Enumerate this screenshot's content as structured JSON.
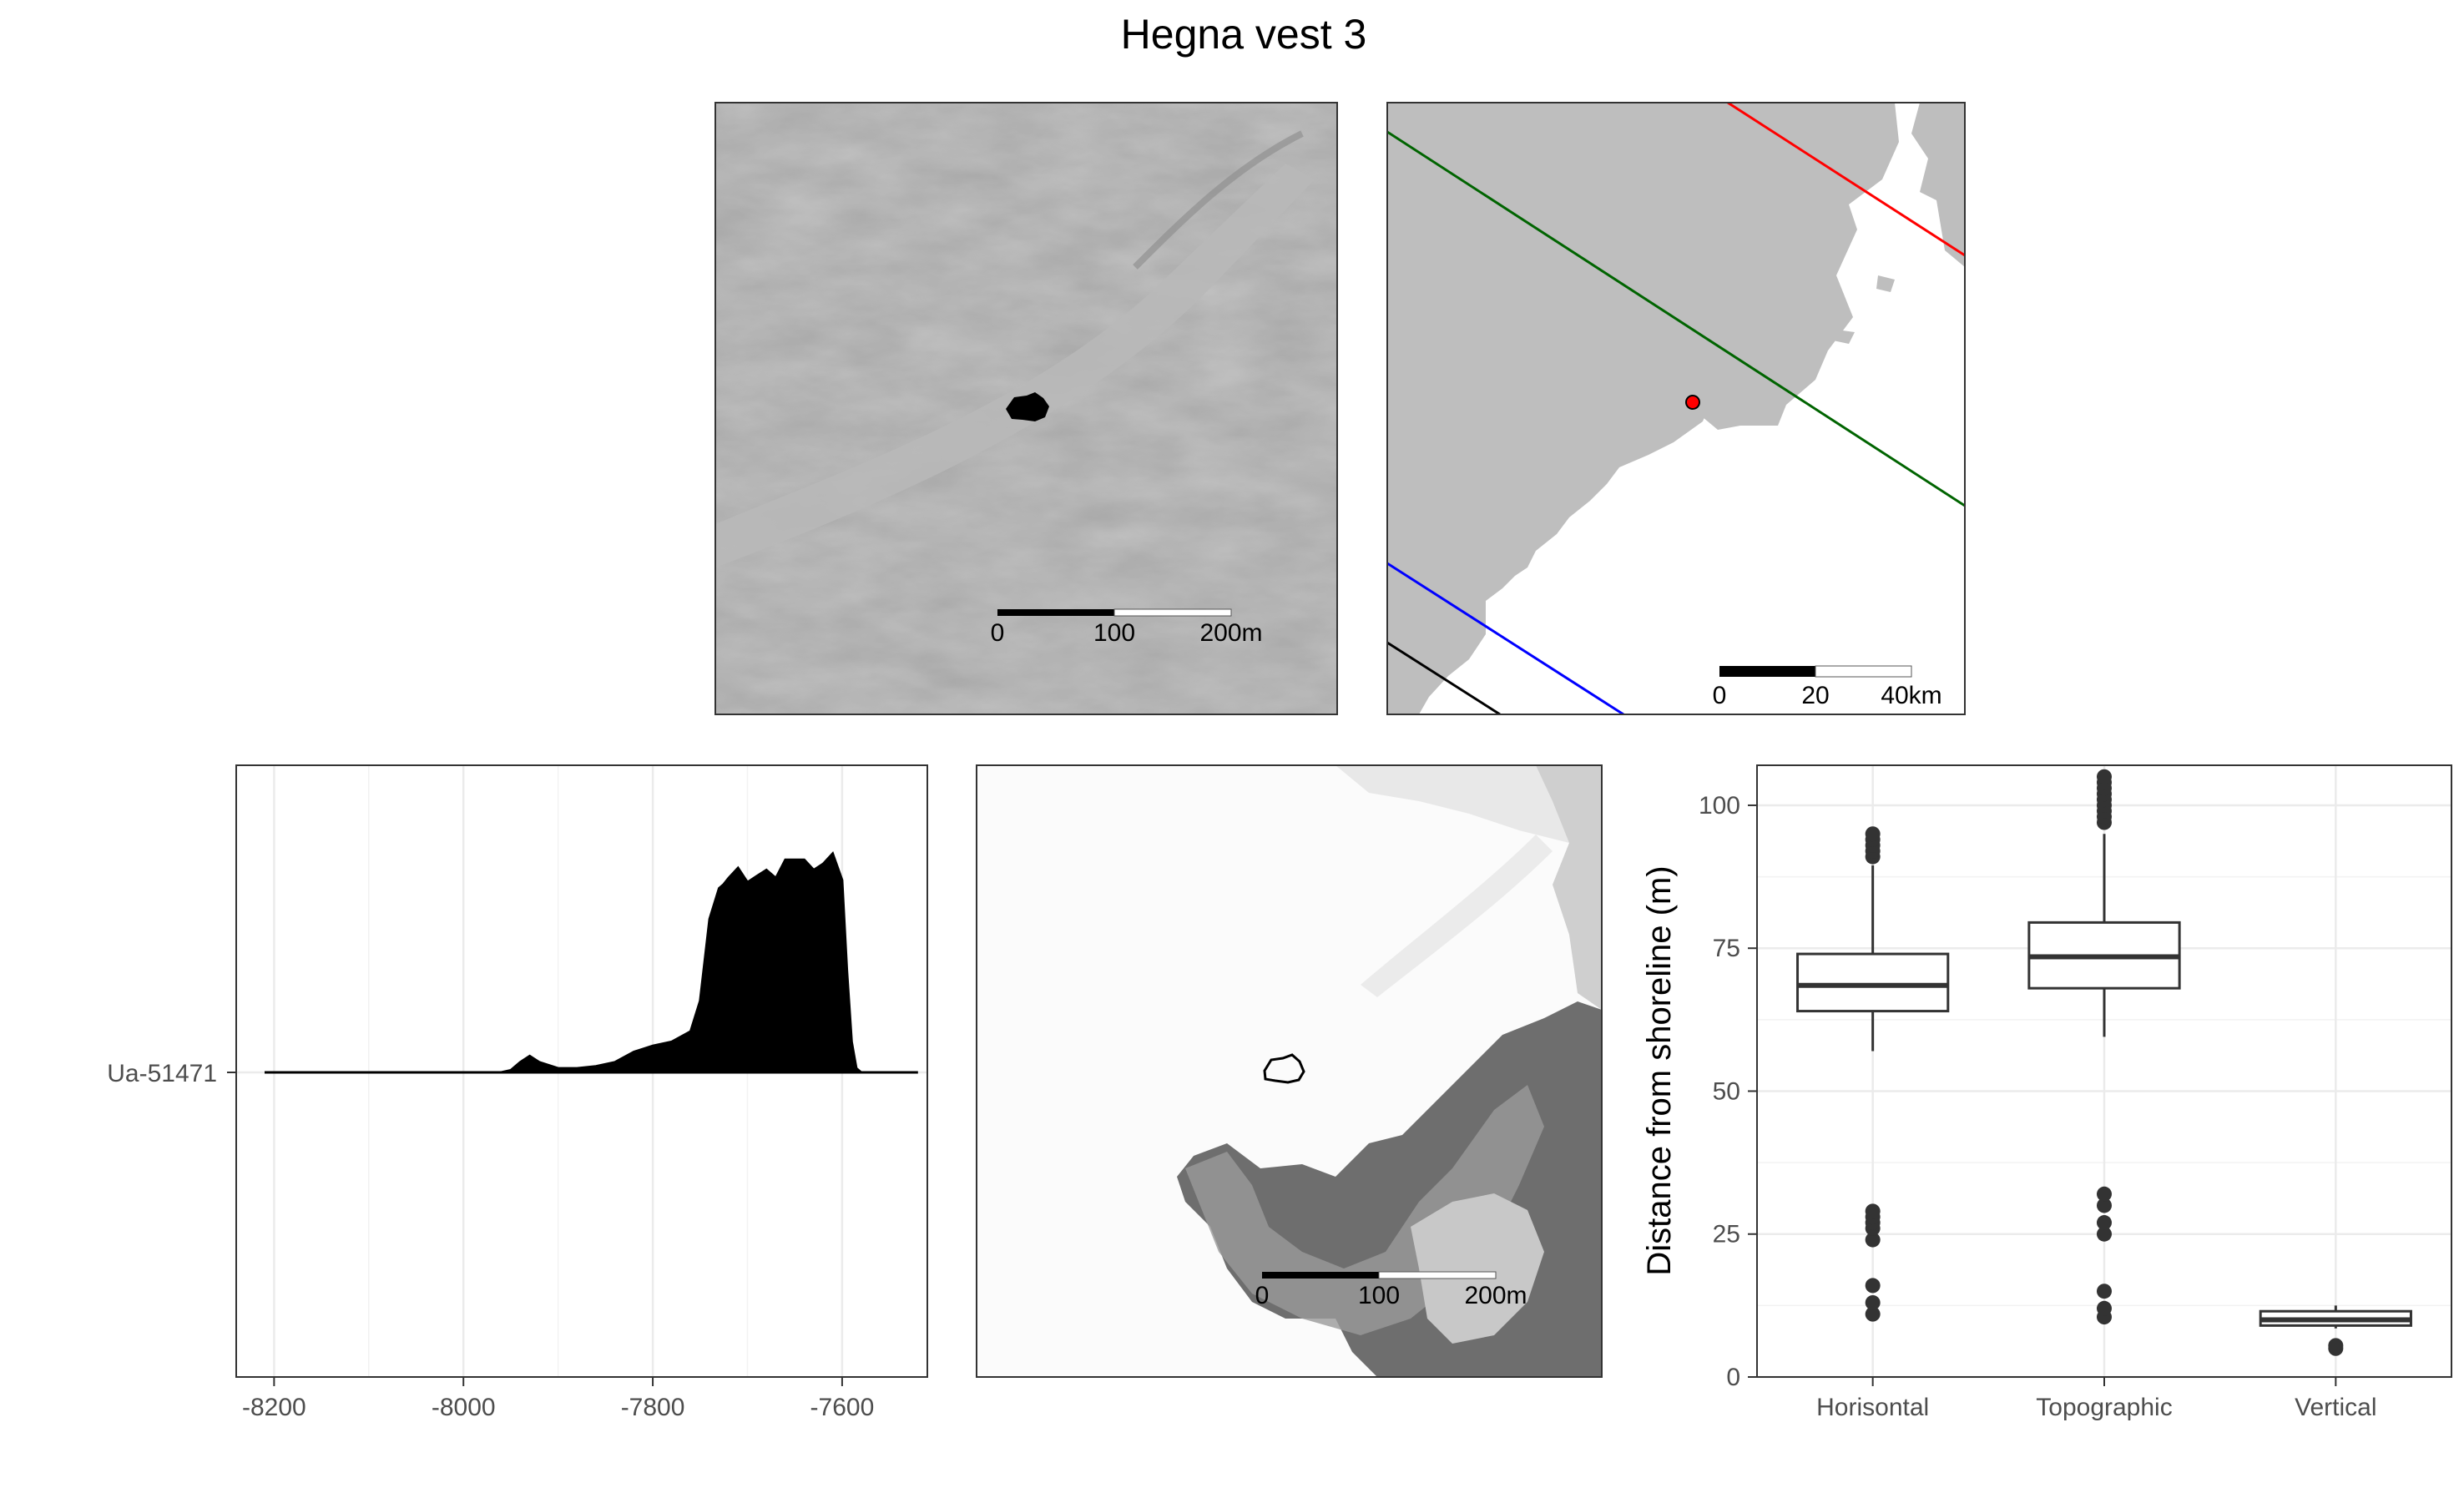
{
  "figure": {
    "title": "Hegna vest 3"
  },
  "panels": {
    "hillshade": {
      "scalebar": {
        "labels": [
          "0",
          "100",
          "200m"
        ]
      }
    },
    "overview": {
      "scalebar": {
        "labels": [
          "0",
          "20",
          "40km"
        ]
      },
      "colors": {
        "land": "#bebebe",
        "sea": "#ffffff",
        "line_red": "#ff0000",
        "line_green": "#006400",
        "line_blue": "#0000ff",
        "line_black": "#000000",
        "site_marker": "#ff0000"
      }
    },
    "elevation": {
      "scalebar": {
        "labels": [
          "0",
          "100",
          "200m"
        ]
      }
    }
  },
  "chart_data": [
    {
      "type": "area",
      "panel": "radiocarbon-density",
      "title": "",
      "xlabel": "",
      "ylabel": "",
      "xlim": [
        -8240,
        -7510
      ],
      "x_ticks": [
        -8200,
        -8000,
        -7800,
        -7600
      ],
      "y_ticks": [
        "Ua-51471"
      ],
      "grid": true,
      "series": [
        {
          "name": "Ua-51471",
          "x": [
            -8210,
            -7960,
            -7950,
            -7940,
            -7930,
            -7920,
            -7900,
            -7880,
            -7860,
            -7840,
            -7820,
            -7800,
            -7780,
            -7760,
            -7750,
            -7740,
            -7730,
            -7725,
            -7720,
            -7710,
            -7700,
            -7690,
            -7680,
            -7670,
            -7660,
            -7650,
            -7640,
            -7630,
            -7620,
            -7610,
            -7600,
            -7595,
            -7590,
            -7585,
            -7580,
            -7520
          ],
          "y": [
            0,
            0,
            0.01,
            0.05,
            0.08,
            0.05,
            0.02,
            0.02,
            0.03,
            0.05,
            0.1,
            0.13,
            0.15,
            0.2,
            0.35,
            0.75,
            0.9,
            0.92,
            0.95,
            1.0,
            0.93,
            0.96,
            0.99,
            0.95,
            1.04,
            1.04,
            1.04,
            0.99,
            1.02,
            1.07,
            0.94,
            0.5,
            0.15,
            0.02,
            0,
            0
          ]
        }
      ]
    },
    {
      "type": "box",
      "panel": "shoreline-distance",
      "title": "",
      "xlabel": "",
      "ylabel": "Distance from shoreline (m)",
      "ylim": [
        0,
        107
      ],
      "y_ticks": [
        0,
        25,
        50,
        75,
        100
      ],
      "categories": [
        "Horisontal",
        "Topographic",
        "Vertical"
      ],
      "grid": true,
      "boxes": [
        {
          "category": "Horisontal",
          "whisker_low": 57,
          "q1": 64,
          "median": 68.5,
          "q3": 74,
          "whisker_high": 89.5,
          "outliers": [
            91,
            92,
            93,
            94,
            95,
            11,
            13,
            16,
            24,
            26,
            27,
            28,
            29
          ]
        },
        {
          "category": "Topographic",
          "whisker_low": 59.5,
          "q1": 68,
          "median": 73.5,
          "q3": 79.5,
          "whisker_high": 95,
          "outliers": [
            97,
            98,
            99,
            100,
            101,
            102,
            103,
            104,
            105,
            10.5,
            12,
            15,
            25,
            27,
            30,
            32
          ]
        },
        {
          "category": "Vertical",
          "whisker_low": 8.5,
          "q1": 9,
          "median": 10,
          "q3": 11.5,
          "whisker_high": 12.5,
          "outliers": [
            5,
            5.5
          ]
        }
      ]
    }
  ]
}
